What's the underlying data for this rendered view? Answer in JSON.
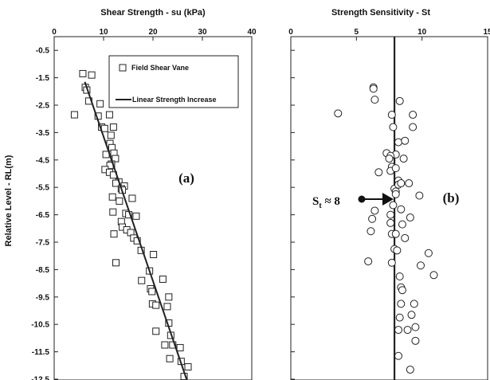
{
  "chart_data": [
    {
      "type": "scatter",
      "title": "Shear Strength - su (kPa)",
      "xlabel": "Shear Strength - su (kPa)",
      "ylabel": "Relative Level - RL(m)",
      "xlim": [
        0,
        40
      ],
      "ylim": [
        -12.5,
        0
      ],
      "x_ticks": [
        "0",
        "10",
        "20",
        "30",
        "40"
      ],
      "y_ticks": [
        "-0.5",
        "-1.5",
        "-2.5",
        "-3.5",
        "-4.5",
        "-5.5",
        "-6.5",
        "-7.5",
        "-8.5",
        "-9.5",
        "-10.5",
        "-11.5",
        "-12.5"
      ],
      "x_axis_position": "top",
      "grid": false,
      "legend_position": "top-right",
      "panel_label": "(a)",
      "series": [
        {
          "name": "Field Shear Vane",
          "marker": "square",
          "x": [
            5.8,
            7.6,
            6.3,
            6.6,
            7.0,
            4.1,
            9.3,
            11.2,
            8.9,
            9.6,
            10.2,
            12.0,
            11.5,
            11.3,
            11.7,
            12.1,
            10.5,
            12.4,
            11.6,
            11.3,
            10.3,
            11.2,
            12.0,
            13.1,
            12.5,
            14.2,
            13.6,
            13.8,
            11.8,
            15.8,
            13.2,
            11.9,
            14.5,
            15.1,
            16.6,
            13.6,
            13.8,
            14.7,
            15.5,
            12.1,
            16.1,
            16.8,
            20.1,
            12.5,
            17.6,
            19.3,
            22.0,
            17.7,
            19.5,
            19.8,
            19.9,
            23.2,
            20.6,
            22.9,
            23.2,
            20.6,
            23.6,
            22.4,
            24.0,
            25.5,
            23.4,
            25.7,
            27.1,
            26.3
          ],
          "y": [
            -1.35,
            -1.4,
            -1.85,
            -1.95,
            -2.35,
            -2.85,
            -2.45,
            -2.85,
            -2.9,
            -3.3,
            -3.35,
            -3.3,
            -3.6,
            -3.9,
            -4.05,
            -4.25,
            -4.3,
            -4.45,
            -4.65,
            -4.7,
            -4.85,
            -4.95,
            -5.05,
            -5.3,
            -5.35,
            -5.45,
            -5.55,
            -5.6,
            -5.85,
            -5.9,
            -6.0,
            -6.4,
            -6.45,
            -6.5,
            -6.55,
            -6.75,
            -6.95,
            -7.05,
            -7.15,
            -7.2,
            -7.35,
            -7.45,
            -7.95,
            -8.25,
            -7.8,
            -8.55,
            -8.85,
            -8.9,
            -9.2,
            -9.3,
            -9.75,
            -9.5,
            -9.8,
            -9.85,
            -10.45,
            -10.75,
            -10.9,
            -11.25,
            -11.25,
            -11.35,
            -11.75,
            -11.85,
            -12.05,
            -12.4
          ]
        },
        {
          "name": "Linear Strength Increase",
          "marker": "line",
          "x": [
            6.2,
            26.8
          ],
          "y": [
            -1.65,
            -12.5
          ]
        }
      ]
    },
    {
      "type": "scatter",
      "title": "Strength Sensitivity - St",
      "xlabel": "Strength Sensitivity - St",
      "xlim": [
        0,
        15
      ],
      "ylim": [
        -12.5,
        0
      ],
      "x_ticks": [
        "0",
        "5",
        "10",
        "15"
      ],
      "x_axis_position": "top",
      "grid": false,
      "panel_label": "(b)",
      "reference_line": {
        "axis": "x",
        "value": 7.9
      },
      "annotation": {
        "text": "St ≈ 8",
        "main": "S",
        "subscript": "t",
        "rest": " ≈ 8"
      },
      "series": [
        {
          "name": "",
          "marker": "circle",
          "x": [
            6.3,
            6.3,
            6.4,
            3.6,
            8.3,
            7.7,
            9.3,
            7.8,
            9.3,
            8.2,
            8.7,
            8.0,
            7.3,
            7.6,
            7.5,
            8.6,
            7.7,
            6.7,
            7.6,
            8.0,
            8.2,
            9.0,
            7.9,
            8.2,
            8.4,
            8.0,
            8.0,
            9.8,
            7.8,
            6.4,
            8.4,
            7.6,
            6.2,
            9.1,
            8.5,
            7.6,
            6.1,
            7.7,
            8.0,
            8.7,
            7.9,
            10.5,
            8.1,
            5.9,
            7.7,
            9.9,
            8.3,
            10.9,
            8.4,
            8.5,
            9.4,
            8.4,
            9.2,
            8.3,
            9.5,
            8.2,
            8.9,
            9.5,
            8.2,
            9.1
          ],
          "y": [
            -1.85,
            -1.9,
            -2.3,
            -2.8,
            -2.35,
            -2.85,
            -2.85,
            -3.3,
            -3.3,
            -3.85,
            -3.8,
            -4.3,
            -4.25,
            -4.35,
            -4.45,
            -4.45,
            -4.75,
            -4.95,
            -4.9,
            -4.8,
            -5.25,
            -5.35,
            -5.55,
            -5.4,
            -5.35,
            -5.65,
            -5.75,
            -5.8,
            -6.15,
            -6.35,
            -6.3,
            -6.5,
            -6.65,
            -6.6,
            -6.85,
            -6.8,
            -7.1,
            -7.2,
            -7.2,
            -7.35,
            -7.75,
            -7.9,
            -7.8,
            -8.2,
            -8.25,
            -8.35,
            -8.75,
            -8.7,
            -9.15,
            -9.25,
            -9.75,
            -9.75,
            -10.15,
            -10.25,
            -10.6,
            -10.7,
            -10.7,
            -11.1,
            -11.65,
            -12.15
          ]
        }
      ]
    }
  ]
}
